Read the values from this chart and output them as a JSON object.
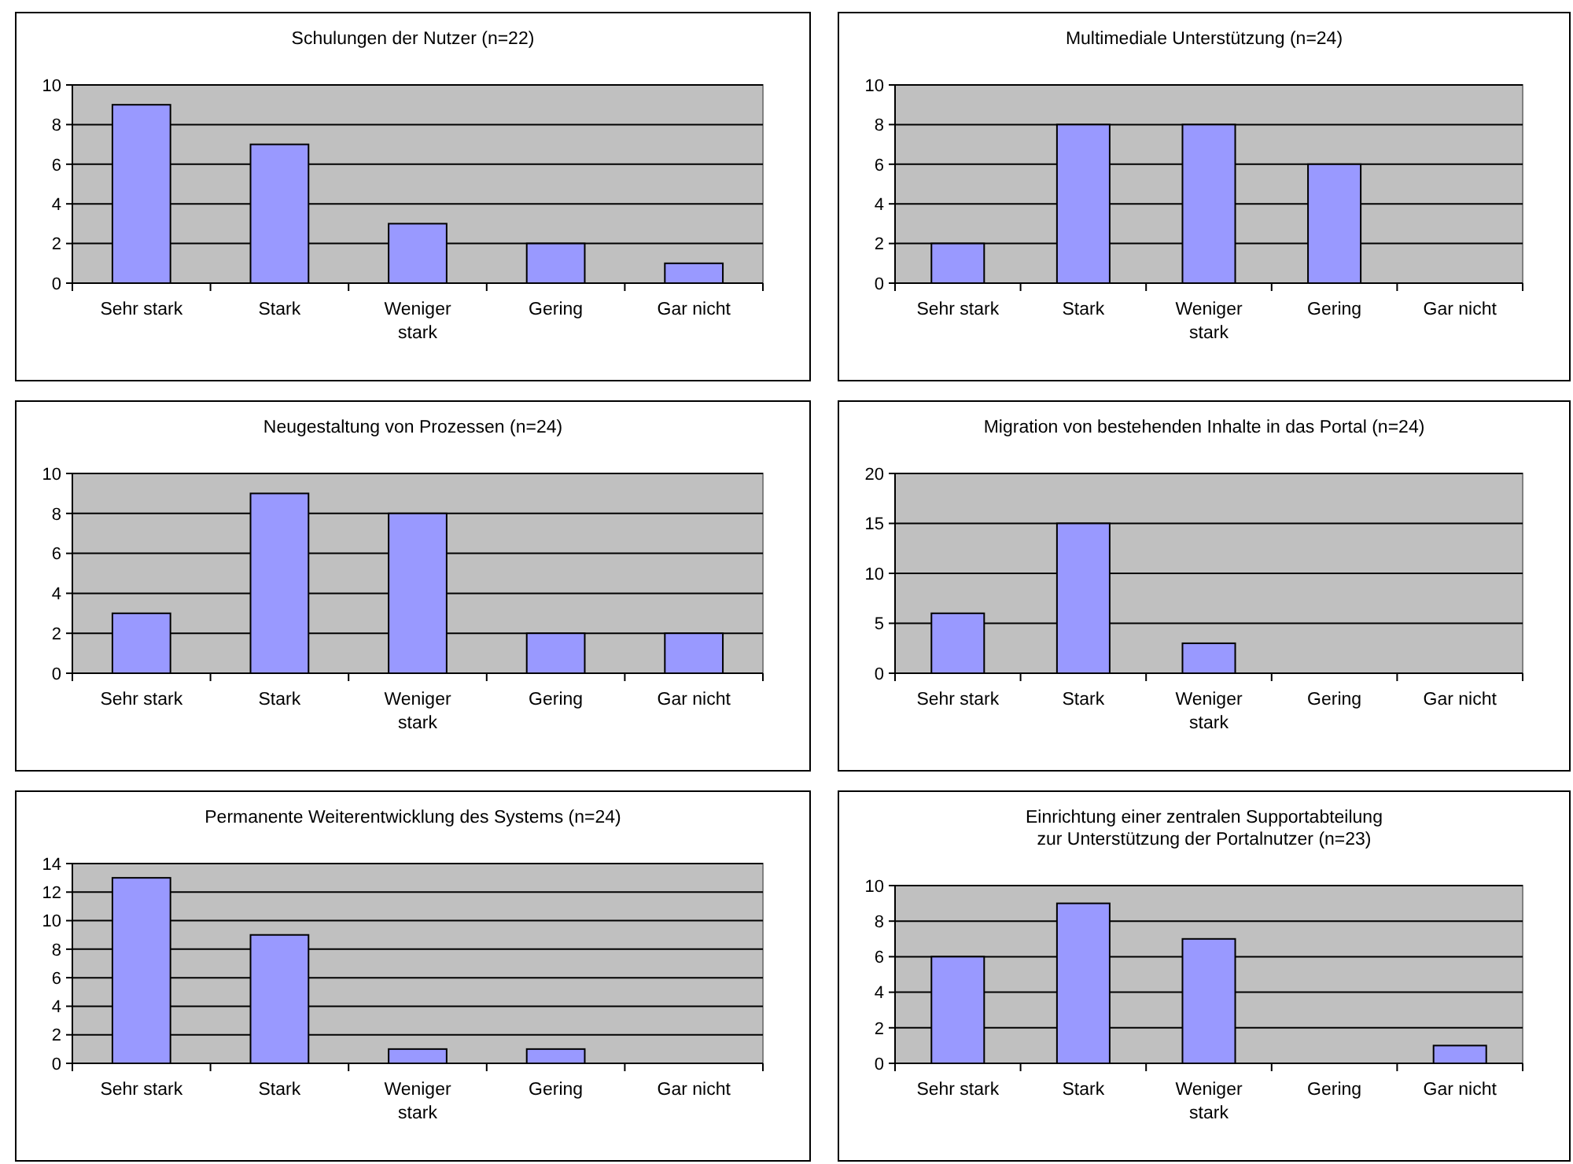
{
  "chart_data": [
    {
      "type": "bar",
      "title": "Schulungen der Nutzer (n=22)",
      "categories": [
        "Sehr stark",
        "Stark",
        "Weniger stark",
        "Gering",
        "Gar nicht"
      ],
      "values": [
        9,
        7,
        3,
        2,
        1
      ],
      "color": "#9999ff",
      "ylim": [
        0,
        10
      ],
      "yticks": [
        0,
        2,
        4,
        6,
        8,
        10
      ],
      "grid": "y"
    },
    {
      "type": "bar",
      "title": "Multimediale Unterstützung (n=24)",
      "categories": [
        "Sehr stark",
        "Stark",
        "Weniger stark",
        "Gering",
        "Gar nicht"
      ],
      "values": [
        2,
        8,
        8,
        6,
        0
      ],
      "color": "#9999ff",
      "ylim": [
        0,
        10
      ],
      "yticks": [
        0,
        2,
        4,
        6,
        8,
        10
      ],
      "grid": "y"
    },
    {
      "type": "bar",
      "title": "Neugestaltung von Prozessen (n=24)",
      "categories": [
        "Sehr stark",
        "Stark",
        "Weniger stark",
        "Gering",
        "Gar nicht"
      ],
      "values": [
        3,
        9,
        8,
        2,
        2
      ],
      "color": "#9999ff",
      "ylim": [
        0,
        10
      ],
      "yticks": [
        0,
        2,
        4,
        6,
        8,
        10
      ],
      "grid": "y"
    },
    {
      "type": "bar",
      "title": "Migration von bestehenden Inhalte in das Portal (n=24)",
      "categories": [
        "Sehr stark",
        "Stark",
        "Weniger stark",
        "Gering",
        "Gar nicht"
      ],
      "values": [
        6,
        15,
        3,
        0,
        0
      ],
      "color": "#9999ff",
      "ylim": [
        0,
        20
      ],
      "yticks": [
        0,
        5,
        10,
        15,
        20
      ],
      "grid": "y"
    },
    {
      "type": "bar",
      "title": "Permanente Weiterentwicklung des Systems (n=24)",
      "categories": [
        "Sehr stark",
        "Stark",
        "Weniger stark",
        "Gering",
        "Gar nicht"
      ],
      "values": [
        13,
        9,
        1,
        1,
        0
      ],
      "color": "#9999ff",
      "ylim": [
        0,
        14
      ],
      "yticks": [
        0,
        2,
        4,
        6,
        8,
        10,
        12,
        14
      ],
      "grid": "y"
    },
    {
      "type": "bar",
      "title": "Einrichtung einer zentralen Supportabteilung zur Unterstützung der Portalnutzer (n=23)",
      "categories": [
        "Sehr stark",
        "Stark",
        "Weniger stark",
        "Gering",
        "Gar nicht"
      ],
      "values": [
        6,
        9,
        7,
        0,
        1
      ],
      "color": "#9999ff",
      "ylim": [
        0,
        10
      ],
      "yticks": [
        0,
        2,
        4,
        6,
        8,
        10
      ],
      "grid": "y"
    }
  ]
}
